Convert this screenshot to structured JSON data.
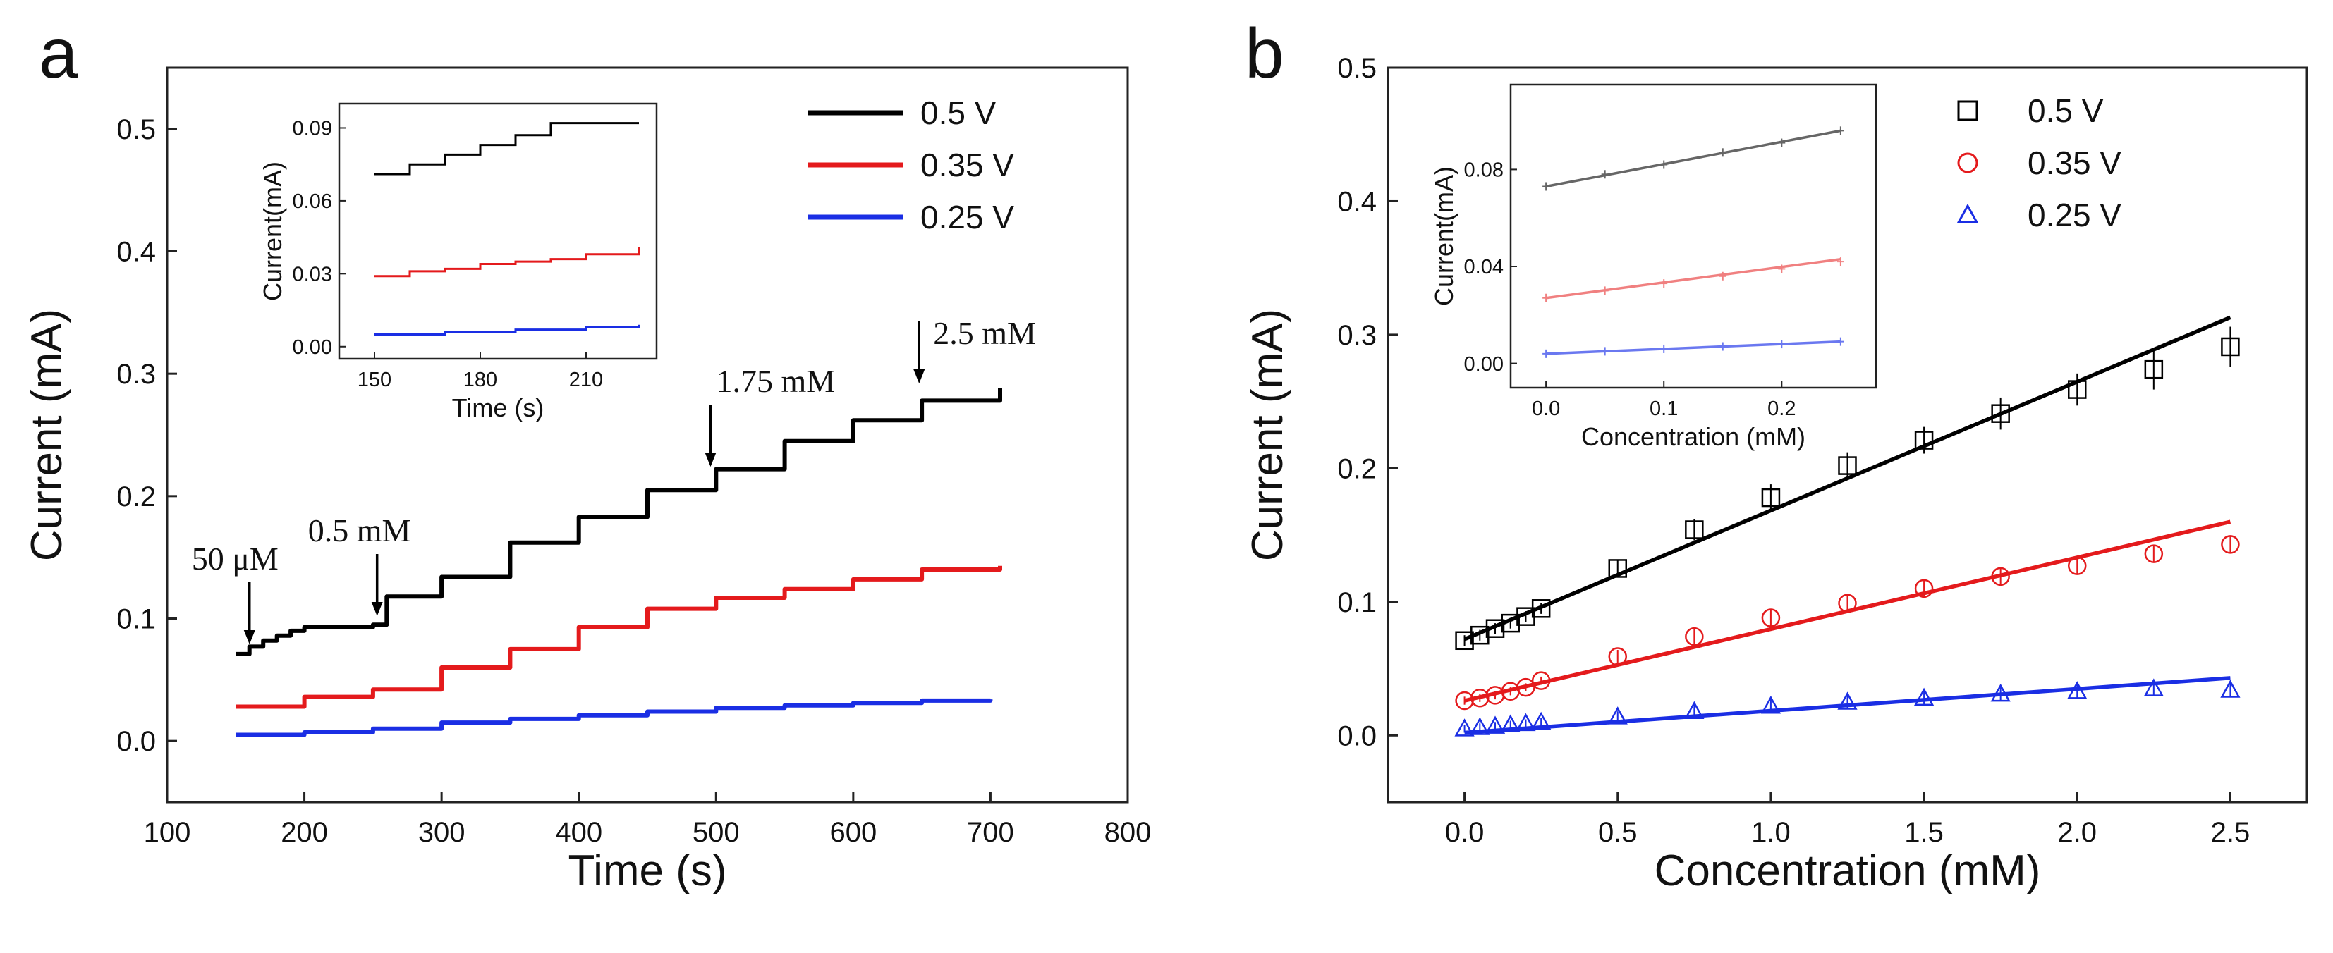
{
  "chart_data": [
    {
      "id": "a",
      "panel_label": "a",
      "type": "line",
      "xlabel": "Time (s)",
      "ylabel": "Current (mA)",
      "xlim": [
        100,
        800
      ],
      "ylim": [
        -0.05,
        0.55
      ],
      "xticks": [
        100,
        200,
        300,
        400,
        500,
        600,
        700,
        800
      ],
      "xtick_labels": [
        "100",
        "200",
        "300",
        "400",
        "500",
        "600",
        "700",
        "800"
      ],
      "yticks": [
        0.0,
        0.1,
        0.2,
        0.3,
        0.4,
        0.5
      ],
      "ytick_labels": [
        "0.0",
        "0.1",
        "0.2",
        "0.3",
        "0.4",
        "0.5"
      ],
      "legend_position": "top-right",
      "series": [
        {
          "name": "0.5 V",
          "color": "#000000",
          "x": [
            150,
            160,
            170,
            180,
            190,
            200,
            250,
            260,
            300,
            350,
            400,
            450,
            500,
            550,
            600,
            650,
            707
          ],
          "y": [
            0.071,
            0.077,
            0.082,
            0.086,
            0.09,
            0.093,
            0.095,
            0.118,
            0.134,
            0.162,
            0.183,
            0.205,
            0.222,
            0.245,
            0.262,
            0.278,
            0.288
          ]
        },
        {
          "name": "0.35 V",
          "color": "#e41a1c",
          "x": [
            150,
            200,
            250,
            300,
            350,
            400,
            450,
            500,
            550,
            600,
            650,
            707
          ],
          "y": [
            0.028,
            0.036,
            0.042,
            0.06,
            0.075,
            0.093,
            0.108,
            0.117,
            0.124,
            0.132,
            0.14,
            0.143
          ]
        },
        {
          "name": "0.25 V",
          "color": "#1a2ee4",
          "x": [
            150,
            200,
            250,
            300,
            350,
            400,
            450,
            500,
            550,
            600,
            650,
            700
          ],
          "y": [
            0.005,
            0.007,
            0.01,
            0.015,
            0.018,
            0.021,
            0.024,
            0.027,
            0.029,
            0.031,
            0.033,
            0.034
          ]
        }
      ],
      "annotations": [
        {
          "text": "50 μM",
          "x": 160,
          "y": 0.079
        },
        {
          "text": "0.5 mM",
          "x": 253,
          "y": 0.102
        },
        {
          "text": "1.75 mM",
          "x": 496,
          "y": 0.224
        },
        {
          "text": "2.5 mM",
          "x": 648,
          "y": 0.292
        }
      ],
      "inset": {
        "type": "line",
        "xlabel": "Time (s)",
        "ylabel": "Current(mA)",
        "xlim": [
          140,
          230
        ],
        "ylim": [
          -0.005,
          0.1
        ],
        "xticks": [
          150,
          180,
          210
        ],
        "xtick_labels": [
          "150",
          "180",
          "210"
        ],
        "yticks": [
          0.0,
          0.03,
          0.06,
          0.09
        ],
        "ytick_labels": [
          "0.00",
          "0.03",
          "0.06",
          "0.09"
        ],
        "series": [
          {
            "name": "0.5 V",
            "color": "#000000",
            "x": [
              150,
              160,
              170,
              180,
              190,
              200,
              225
            ],
            "y": [
              0.071,
              0.075,
              0.079,
              0.083,
              0.087,
              0.092,
              0.092
            ]
          },
          {
            "name": "0.35 V",
            "color": "#e41a1c",
            "x": [
              150,
              160,
              170,
              180,
              190,
              200,
              210,
              225
            ],
            "y": [
              0.029,
              0.031,
              0.032,
              0.034,
              0.035,
              0.036,
              0.038,
              0.041
            ]
          },
          {
            "name": "0.25 V",
            "color": "#1a2ee4",
            "x": [
              150,
              170,
              190,
              210,
              225
            ],
            "y": [
              0.005,
              0.006,
              0.007,
              0.008,
              0.009
            ]
          }
        ]
      }
    },
    {
      "id": "b",
      "panel_label": "b",
      "type": "scatter",
      "xlabel": "Concentration (mM)",
      "ylabel": "Current (mA)",
      "xlim": [
        -0.25,
        2.75
      ],
      "ylim": [
        -0.05,
        0.5
      ],
      "xticks": [
        0.0,
        0.5,
        1.0,
        1.5,
        2.0,
        2.5
      ],
      "xtick_labels": [
        "0.0",
        "0.5",
        "1.0",
        "1.5",
        "2.0",
        "2.5"
      ],
      "yticks": [
        0.0,
        0.1,
        0.2,
        0.3,
        0.4,
        0.5
      ],
      "ytick_labels": [
        "0.0",
        "0.1",
        "0.2",
        "0.3",
        "0.4",
        "0.5"
      ],
      "legend_position": "top-right",
      "series": [
        {
          "name": "0.5 V",
          "marker": "square",
          "color": "#000000",
          "x": [
            0.0,
            0.05,
            0.1,
            0.15,
            0.2,
            0.25,
            0.5,
            0.75,
            1.0,
            1.25,
            1.5,
            1.75,
            2.0,
            2.25,
            2.5
          ],
          "y": [
            0.071,
            0.075,
            0.08,
            0.084,
            0.089,
            0.095,
            0.125,
            0.154,
            0.178,
            0.202,
            0.221,
            0.241,
            0.259,
            0.274,
            0.291
          ],
          "err": [
            0.004,
            0.004,
            0.004,
            0.004,
            0.004,
            0.004,
            0.006,
            0.008,
            0.01,
            0.01,
            0.01,
            0.012,
            0.012,
            0.015,
            0.015
          ],
          "fit": {
            "x": [
              0.0,
              2.5
            ],
            "y": [
              0.072,
              0.313
            ]
          }
        },
        {
          "name": "0.35 V",
          "marker": "circle",
          "color": "#e41a1c",
          "x": [
            0.0,
            0.05,
            0.1,
            0.15,
            0.2,
            0.25,
            0.5,
            0.75,
            1.0,
            1.25,
            1.5,
            1.75,
            2.0,
            2.25,
            2.5
          ],
          "y": [
            0.026,
            0.028,
            0.03,
            0.033,
            0.036,
            0.041,
            0.059,
            0.074,
            0.088,
            0.099,
            0.11,
            0.119,
            0.127,
            0.136,
            0.143
          ],
          "err": [
            0.003,
            0.003,
            0.003,
            0.003,
            0.003,
            0.003,
            0.005,
            0.006,
            0.006,
            0.006,
            0.006,
            0.006,
            0.006,
            0.006,
            0.006
          ],
          "fit": {
            "x": [
              0.0,
              2.5
            ],
            "y": [
              0.026,
              0.16
            ]
          }
        },
        {
          "name": "0.25 V",
          "marker": "triangle",
          "color": "#1a2ee4",
          "x": [
            0.0,
            0.05,
            0.1,
            0.15,
            0.2,
            0.25,
            0.5,
            0.75,
            1.0,
            1.25,
            1.5,
            1.75,
            2.0,
            2.25,
            2.5
          ],
          "y": [
            0.005,
            0.006,
            0.007,
            0.008,
            0.009,
            0.01,
            0.014,
            0.018,
            0.022,
            0.025,
            0.028,
            0.031,
            0.033,
            0.035,
            0.034
          ],
          "err": [
            0.003,
            0.003,
            0.003,
            0.003,
            0.003,
            0.003,
            0.004,
            0.005,
            0.005,
            0.005,
            0.005,
            0.005,
            0.005,
            0.005,
            0.005
          ],
          "fit": {
            "x": [
              0.0,
              2.5
            ],
            "y": [
              0.002,
              0.043
            ]
          }
        }
      ],
      "inset": {
        "type": "scatter",
        "xlabel": "Concentration (mM)",
        "ylabel": "Current(mA)",
        "xlim": [
          -0.03,
          0.28
        ],
        "ylim": [
          -0.01,
          0.115
        ],
        "xticks": [
          0.0,
          0.1,
          0.2
        ],
        "xtick_labels": [
          "0.0",
          "0.1",
          "0.2"
        ],
        "yticks": [
          0.0,
          0.04,
          0.08
        ],
        "ytick_labels": [
          "0.00",
          "0.04",
          "0.08"
        ],
        "series": [
          {
            "name": "0.5 V",
            "color": "#666666",
            "x": [
              0.0,
              0.05,
              0.1,
              0.15,
              0.2,
              0.25
            ],
            "y": [
              0.073,
              0.078,
              0.082,
              0.087,
              0.091,
              0.096
            ],
            "fit": {
              "x": [
                0.0,
                0.25
              ],
              "y": [
                0.073,
                0.096
              ]
            }
          },
          {
            "name": "0.35 V",
            "color": "#f08080",
            "x": [
              0.0,
              0.05,
              0.1,
              0.15,
              0.2,
              0.25
            ],
            "y": [
              0.027,
              0.03,
              0.033,
              0.036,
              0.039,
              0.042
            ],
            "fit": {
              "x": [
                0.0,
                0.25
              ],
              "y": [
                0.027,
                0.043
              ]
            }
          },
          {
            "name": "0.25 V",
            "color": "#6a78f0",
            "x": [
              0.0,
              0.05,
              0.1,
              0.15,
              0.2,
              0.25
            ],
            "y": [
              0.004,
              0.005,
              0.006,
              0.007,
              0.008,
              0.009
            ],
            "fit": {
              "x": [
                0.0,
                0.25
              ],
              "y": [
                0.004,
                0.009
              ]
            }
          }
        ]
      }
    }
  ]
}
